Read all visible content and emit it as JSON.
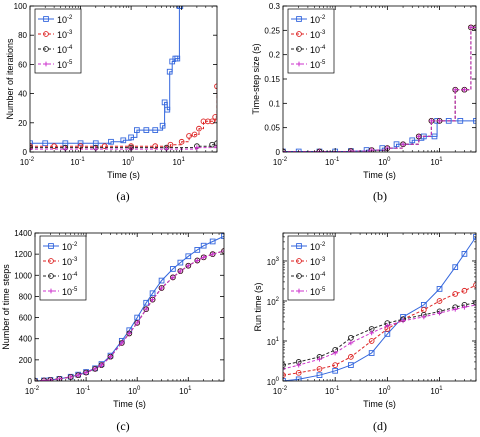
{
  "figure": {
    "panels": [
      "a",
      "b",
      "c",
      "d"
    ]
  },
  "chart_data": [
    {
      "id": "a",
      "type": "line",
      "panel_label": "(a)",
      "xlabel": "Time (s)",
      "ylabel": "Number of iterations",
      "xscale": "log",
      "yscale": "linear",
      "xlim": [
        0.01,
        50
      ],
      "ylim": [
        0,
        100
      ],
      "xticks": [
        {
          "v": 0.01,
          "b": "10",
          "e": "-2"
        },
        {
          "v": 0.1,
          "b": "10",
          "e": "-1"
        },
        {
          "v": 1,
          "b": "10",
          "e": "0"
        },
        {
          "v": 10,
          "b": "10",
          "e": "1"
        }
      ],
      "yticks": [
        {
          "v": 0,
          "t": "0"
        },
        {
          "v": 20,
          "t": "20"
        },
        {
          "v": 40,
          "t": "40"
        },
        {
          "v": 60,
          "t": "60"
        },
        {
          "v": 80,
          "t": "80"
        },
        {
          "v": 100,
          "t": "100"
        }
      ],
      "grid": false,
      "legend": {
        "position": "top-left",
        "items": [
          {
            "b": "10",
            "e": "-2"
          },
          {
            "b": "10",
            "e": "-3"
          },
          {
            "b": "10",
            "e": "-4"
          },
          {
            "b": "10",
            "e": "-5"
          }
        ]
      },
      "series": [
        {
          "name_base": "10",
          "name_exp": "-2",
          "color": "#3366dd",
          "marker": "square",
          "style": "solid",
          "step": true,
          "x": [
            0.01,
            0.02,
            0.05,
            0.1,
            0.2,
            0.4,
            0.7,
            1.0,
            1.3,
            2.0,
            3.0,
            4.2,
            4.6,
            5.2,
            5.8,
            6.5,
            7.5,
            8.2,
            9.0,
            9.4
          ],
          "y": [
            6,
            6,
            6,
            6,
            6,
            7,
            8,
            10,
            15,
            15,
            15,
            18,
            34,
            29,
            55,
            62,
            64,
            64,
            100,
            100
          ]
        },
        {
          "name_base": "10",
          "name_exp": "-3",
          "color": "#dd2222",
          "marker": "circle",
          "style": "dashed",
          "step": true,
          "x": [
            0.01,
            0.03,
            0.1,
            0.3,
            1.0,
            3.0,
            6.0,
            10.0,
            14.0,
            18.0,
            22.0,
            27.0,
            33.0,
            40.0,
            46.0,
            50.0
          ],
          "y": [
            4,
            4,
            4,
            4,
            4,
            4,
            5,
            7,
            11,
            12,
            16,
            21,
            21,
            21,
            24,
            45
          ]
        },
        {
          "name_base": "10",
          "name_exp": "-4",
          "color": "#222222",
          "marker": "circle",
          "style": "dashed",
          "step": true,
          "x": [
            0.01,
            0.05,
            0.2,
            1.0,
            5.0,
            20.0,
            40.0,
            50.0
          ],
          "y": [
            3,
            3,
            3,
            3,
            3,
            4,
            5,
            6
          ]
        },
        {
          "name_base": "10",
          "name_exp": "-5",
          "color": "#cc33cc",
          "marker": "plus",
          "style": "dashed",
          "step": true,
          "x": [
            0.01,
            0.05,
            0.2,
            1.0,
            5.0,
            20.0,
            50.0
          ],
          "y": [
            2,
            2,
            2,
            2,
            2,
            3,
            4
          ]
        }
      ]
    },
    {
      "id": "b",
      "type": "line",
      "panel_label": "(b)",
      "xlabel": "Time (s)",
      "ylabel": "Time-step size (s)",
      "xscale": "log",
      "yscale": "linear",
      "xlim": [
        0.01,
        50
      ],
      "ylim": [
        0,
        0.3
      ],
      "xticks": [
        {
          "v": 0.01,
          "b": "10",
          "e": "-2"
        },
        {
          "v": 0.1,
          "b": "10",
          "e": "-1"
        },
        {
          "v": 1,
          "b": "10",
          "e": "0"
        },
        {
          "v": 10,
          "b": "10",
          "e": "1"
        }
      ],
      "yticks": [
        {
          "v": 0,
          "t": "0"
        },
        {
          "v": 0.05,
          "t": "0.05"
        },
        {
          "v": 0.1,
          "t": "0.1"
        },
        {
          "v": 0.15,
          "t": "0.15"
        },
        {
          "v": 0.2,
          "t": "0.2"
        },
        {
          "v": 0.25,
          "t": "0.25"
        },
        {
          "v": 0.3,
          "t": "0.3"
        }
      ],
      "grid": false,
      "legend": {
        "position": "top-left",
        "items": [
          {
            "b": "10",
            "e": "-2"
          },
          {
            "b": "10",
            "e": "-3"
          },
          {
            "b": "10",
            "e": "-4"
          },
          {
            "b": "10",
            "e": "-5"
          }
        ]
      },
      "series": [
        {
          "name_base": "10",
          "name_exp": "-2",
          "color": "#3366dd",
          "marker": "square",
          "style": "solid",
          "step": true,
          "x": [
            0.01,
            0.02,
            0.05,
            0.1,
            0.2,
            0.4,
            0.8,
            1.5,
            3.0,
            5.0,
            8.0,
            9.0,
            15.0,
            25.0,
            50.0
          ],
          "y": [
            0.001,
            0.001,
            0.001,
            0.001,
            0.002,
            0.004,
            0.008,
            0.016,
            0.024,
            0.032,
            0.032,
            0.064,
            0.064,
            0.064,
            0.064
          ]
        },
        {
          "name_base": "10",
          "name_exp": "-3",
          "color": "#dd2222",
          "marker": "circle",
          "style": "dashed",
          "step": true,
          "x": [
            0.01,
            0.05,
            0.2,
            0.5,
            1.0,
            2.0,
            4.0,
            7.0,
            10.0,
            20.0,
            30.0,
            40.0,
            50.0
          ],
          "y": [
            0.001,
            0.001,
            0.002,
            0.004,
            0.008,
            0.016,
            0.032,
            0.064,
            0.064,
            0.128,
            0.128,
            0.256,
            0.256
          ]
        },
        {
          "name_base": "10",
          "name_exp": "-4",
          "color": "#222222",
          "marker": "circle",
          "style": "dashed",
          "step": true,
          "x": [
            0.01,
            0.05,
            0.2,
            0.5,
            1.0,
            2.0,
            4.0,
            7.0,
            10.0,
            20.0,
            30.0,
            40.0,
            50.0
          ],
          "y": [
            0.001,
            0.001,
            0.002,
            0.004,
            0.008,
            0.016,
            0.032,
            0.064,
            0.064,
            0.128,
            0.128,
            0.256,
            0.256
          ]
        },
        {
          "name_base": "10",
          "name_exp": "-5",
          "color": "#cc33cc",
          "marker": "plus",
          "style": "dashed",
          "step": true,
          "x": [
            0.01,
            0.05,
            0.2,
            0.5,
            1.0,
            2.0,
            4.0,
            7.0,
            10.0,
            20.0,
            30.0,
            40.0,
            50.0
          ],
          "y": [
            0.001,
            0.001,
            0.002,
            0.004,
            0.008,
            0.016,
            0.032,
            0.064,
            0.064,
            0.128,
            0.128,
            0.256,
            0.256
          ]
        }
      ]
    },
    {
      "id": "c",
      "type": "line",
      "panel_label": "(c)",
      "xlabel": "Time (s)",
      "ylabel": "Number of time steps",
      "xscale": "log",
      "yscale": "linear",
      "xlim": [
        0.01,
        50
      ],
      "ylim": [
        0,
        1400
      ],
      "xticks": [
        {
          "v": 0.01,
          "b": "10",
          "e": "-2"
        },
        {
          "v": 0.1,
          "b": "10",
          "e": "-1"
        },
        {
          "v": 1,
          "b": "10",
          "e": "0"
        },
        {
          "v": 10,
          "b": "10",
          "e": "1"
        }
      ],
      "yticks": [
        {
          "v": 0,
          "t": "0"
        },
        {
          "v": 200,
          "t": "200"
        },
        {
          "v": 400,
          "t": "400"
        },
        {
          "v": 600,
          "t": "600"
        },
        {
          "v": 800,
          "t": "800"
        },
        {
          "v": 1000,
          "t": "1000"
        },
        {
          "v": 1200,
          "t": "1200"
        },
        {
          "v": 1400,
          "t": "1400"
        }
      ],
      "grid": false,
      "legend": {
        "position": "top-left",
        "items": [
          {
            "b": "10",
            "e": "-2"
          },
          {
            "b": "10",
            "e": "-3"
          },
          {
            "b": "10",
            "e": "-4"
          },
          {
            "b": "10",
            "e": "-5"
          }
        ]
      },
      "series": [
        {
          "name_base": "10",
          "name_exp": "-2",
          "color": "#3366dd",
          "marker": "square",
          "style": "solid",
          "step": false,
          "x": [
            0.01,
            0.015,
            0.02,
            0.03,
            0.05,
            0.07,
            0.1,
            0.15,
            0.2,
            0.3,
            0.5,
            0.7,
            1.0,
            1.5,
            2.0,
            3.0,
            5.0,
            7.0,
            10.0,
            15.0,
            20.0,
            30.0,
            50.0
          ],
          "y": [
            0,
            5,
            10,
            20,
            40,
            60,
            85,
            120,
            160,
            240,
            380,
            480,
            600,
            740,
            830,
            950,
            1060,
            1120,
            1180,
            1240,
            1280,
            1320,
            1370
          ]
        },
        {
          "name_base": "10",
          "name_exp": "-3",
          "color": "#dd2222",
          "marker": "circle",
          "style": "dashed",
          "step": false,
          "x": [
            0.01,
            0.015,
            0.02,
            0.03,
            0.05,
            0.07,
            0.1,
            0.15,
            0.2,
            0.3,
            0.5,
            0.7,
            1.0,
            1.5,
            2.0,
            3.0,
            5.0,
            7.0,
            10.0,
            15.0,
            20.0,
            30.0,
            50.0
          ],
          "y": [
            0,
            5,
            10,
            20,
            38,
            55,
            80,
            115,
            150,
            230,
            360,
            450,
            550,
            680,
            770,
            880,
            980,
            1040,
            1090,
            1140,
            1170,
            1200,
            1230
          ]
        },
        {
          "name_base": "10",
          "name_exp": "-4",
          "color": "#222222",
          "marker": "circle",
          "style": "dashed",
          "step": false,
          "x": [
            0.01,
            0.015,
            0.02,
            0.03,
            0.05,
            0.07,
            0.1,
            0.15,
            0.2,
            0.3,
            0.5,
            0.7,
            1.0,
            1.5,
            2.0,
            3.0,
            5.0,
            7.0,
            10.0,
            15.0,
            20.0,
            30.0,
            50.0
          ],
          "y": [
            0,
            5,
            10,
            20,
            38,
            55,
            80,
            115,
            150,
            230,
            360,
            450,
            550,
            680,
            770,
            880,
            980,
            1040,
            1090,
            1140,
            1170,
            1200,
            1230
          ]
        },
        {
          "name_base": "10",
          "name_exp": "-5",
          "color": "#cc33cc",
          "marker": "plus",
          "style": "dashed",
          "step": false,
          "x": [
            0.01,
            0.015,
            0.02,
            0.03,
            0.05,
            0.07,
            0.1,
            0.15,
            0.2,
            0.3,
            0.5,
            0.7,
            1.0,
            1.5,
            2.0,
            3.0,
            5.0,
            7.0,
            10.0,
            15.0,
            20.0,
            30.0,
            50.0
          ],
          "y": [
            0,
            5,
            10,
            20,
            38,
            55,
            80,
            115,
            150,
            230,
            360,
            450,
            550,
            680,
            770,
            880,
            980,
            1040,
            1090,
            1140,
            1170,
            1200,
            1230
          ]
        }
      ]
    },
    {
      "id": "d",
      "type": "line",
      "panel_label": "(d)",
      "xlabel": "Time (s)",
      "ylabel": "Run time (s)",
      "xscale": "log",
      "yscale": "log",
      "xlim": [
        0.01,
        50
      ],
      "ylim": [
        1,
        5000
      ],
      "xticks": [
        {
          "v": 0.01,
          "b": "10",
          "e": "-2"
        },
        {
          "v": 0.1,
          "b": "10",
          "e": "-1"
        },
        {
          "v": 1,
          "b": "10",
          "e": "0"
        },
        {
          "v": 10,
          "b": "10",
          "e": "1"
        }
      ],
      "yticks": [
        {
          "v": 1,
          "b": "10",
          "e": "0"
        },
        {
          "v": 10,
          "b": "10",
          "e": "1"
        },
        {
          "v": 100,
          "b": "10",
          "e": "2"
        },
        {
          "v": 1000,
          "b": "10",
          "e": "3"
        }
      ],
      "grid": false,
      "legend": {
        "position": "top-left",
        "items": [
          {
            "b": "10",
            "e": "-2"
          },
          {
            "b": "10",
            "e": "-3"
          },
          {
            "b": "10",
            "e": "-4"
          },
          {
            "b": "10",
            "e": "-5"
          }
        ]
      },
      "series": [
        {
          "name_base": "10",
          "name_exp": "-2",
          "color": "#3366dd",
          "marker": "square",
          "style": "solid",
          "step": false,
          "x": [
            0.01,
            0.02,
            0.05,
            0.1,
            0.2,
            0.5,
            1.0,
            2.0,
            5.0,
            10.0,
            20.0,
            30.0,
            50.0
          ],
          "y": [
            1.0,
            1.1,
            1.4,
            1.8,
            2.5,
            5.0,
            15,
            40,
            80,
            200,
            700,
            1500,
            4000
          ]
        },
        {
          "name_base": "10",
          "name_exp": "-3",
          "color": "#dd2222",
          "marker": "circle",
          "style": "dashed",
          "step": false,
          "x": [
            0.01,
            0.02,
            0.05,
            0.1,
            0.2,
            0.5,
            1.0,
            2.0,
            5.0,
            10.0,
            20.0,
            30.0,
            50.0
          ],
          "y": [
            1.4,
            1.6,
            2.0,
            2.5,
            4.0,
            10,
            20,
            35,
            60,
            100,
            150,
            180,
            250
          ]
        },
        {
          "name_base": "10",
          "name_exp": "-4",
          "color": "#222222",
          "marker": "circle",
          "style": "dashed",
          "step": false,
          "x": [
            0.01,
            0.02,
            0.05,
            0.1,
            0.2,
            0.5,
            1.0,
            2.0,
            5.0,
            10.0,
            20.0,
            30.0,
            50.0
          ],
          "y": [
            2.5,
            3.0,
            4.0,
            6.0,
            12,
            20,
            28,
            35,
            45,
            55,
            70,
            80,
            90
          ]
        },
        {
          "name_base": "10",
          "name_exp": "-5",
          "color": "#cc33cc",
          "marker": "plus",
          "style": "dashed",
          "step": false,
          "x": [
            0.01,
            0.02,
            0.05,
            0.1,
            0.2,
            0.5,
            1.0,
            2.0,
            5.0,
            10.0,
            20.0,
            30.0,
            50.0
          ],
          "y": [
            2.0,
            2.5,
            3.5,
            5.0,
            9.0,
            16,
            24,
            32,
            40,
            50,
            62,
            70,
            80
          ]
        }
      ]
    }
  ]
}
